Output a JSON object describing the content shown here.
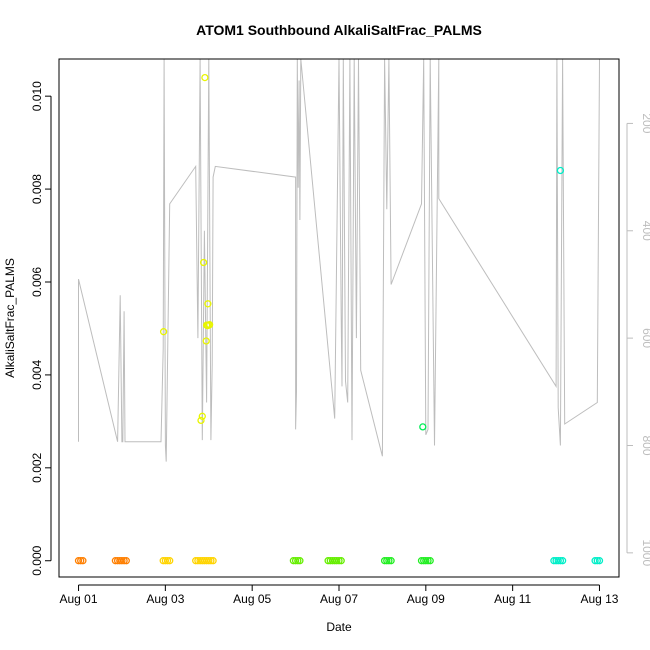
{
  "chart_data": {
    "type": "scatter",
    "title": "ATOM1 Southbound AlkaliSaltFrac_PALMS",
    "xlabel": "Date",
    "ylabel": "AlkaliSaltFrac_PALMS",
    "x_unit": "days since Aug 01",
    "xlim": [
      -0.45,
      12.45
    ],
    "ylim": [
      -0.00035,
      0.0108
    ],
    "x_ticks": [
      {
        "value": 0,
        "label": "Aug 01"
      },
      {
        "value": 2,
        "label": "Aug 03"
      },
      {
        "value": 4,
        "label": "Aug 05"
      },
      {
        "value": 6,
        "label": "Aug 07"
      },
      {
        "value": 8,
        "label": "Aug 09"
      },
      {
        "value": 10,
        "label": "Aug 11"
      },
      {
        "value": 12,
        "label": "Aug 13"
      }
    ],
    "y_ticks": [
      {
        "value": 0.0,
        "label": "0.000"
      },
      {
        "value": 0.002,
        "label": "0.002"
      },
      {
        "value": 0.004,
        "label": "0.004"
      },
      {
        "value": 0.006,
        "label": "0.006"
      },
      {
        "value": 0.008,
        "label": "0.008"
      },
      {
        "value": 0.01,
        "label": "0.010"
      }
    ],
    "right_axis": {
      "label": "",
      "ticks": [
        {
          "value": 200,
          "label": "200"
        },
        {
          "value": 400,
          "label": "400"
        },
        {
          "value": 600,
          "label": "600"
        },
        {
          "value": 800,
          "label": "800"
        },
        {
          "value": 1000,
          "label": "1000"
        }
      ],
      "ylim": [
        1045,
        80
      ],
      "color": "#bdbdbd"
    },
    "altitude_track": {
      "color": "#bdbdbd",
      "points": [
        [
          0.0,
          793
        ],
        [
          0.0,
          490
        ],
        [
          0.9,
          793
        ],
        [
          0.92,
          700
        ],
        [
          0.96,
          520
        ],
        [
          1.0,
          793
        ],
        [
          1.02,
          793
        ],
        [
          1.05,
          550
        ],
        [
          1.07,
          793
        ],
        [
          1.9,
          793
        ],
        [
          1.95,
          620
        ],
        [
          1.97,
          80
        ],
        [
          2.0,
          800
        ],
        [
          2.02,
          830
        ],
        [
          2.1,
          350
        ],
        [
          2.7,
          280
        ],
        [
          2.75,
          600
        ],
        [
          2.8,
          80
        ],
        [
          2.85,
          790
        ],
        [
          2.9,
          400
        ],
        [
          2.95,
          720
        ],
        [
          3.0,
          80
        ],
        [
          3.05,
          790
        ],
        [
          3.08,
          650
        ],
        [
          3.1,
          300
        ],
        [
          3.15,
          280
        ],
        [
          5.0,
          300
        ],
        [
          5.0,
          770
        ],
        [
          5.02,
          700
        ],
        [
          5.04,
          80
        ],
        [
          5.06,
          320
        ],
        [
          5.08,
          120
        ],
        [
          5.1,
          380
        ],
        [
          5.12,
          80
        ],
        [
          5.9,
          750
        ],
        [
          6.0,
          80
        ],
        [
          6.05,
          560
        ],
        [
          6.07,
          690
        ],
        [
          6.1,
          80
        ],
        [
          6.15,
          680
        ],
        [
          6.2,
          720
        ],
        [
          6.25,
          80
        ],
        [
          6.3,
          790
        ],
        [
          6.35,
          80
        ],
        [
          6.4,
          600
        ],
        [
          6.45,
          80
        ],
        [
          6.5,
          660
        ],
        [
          7.0,
          820
        ],
        [
          7.05,
          80
        ],
        [
          7.1,
          360
        ],
        [
          7.15,
          80
        ],
        [
          7.2,
          500
        ],
        [
          7.9,
          350
        ],
        [
          7.95,
          80
        ],
        [
          8.0,
          780
        ],
        [
          8.05,
          770
        ],
        [
          8.1,
          80
        ],
        [
          8.15,
          430
        ],
        [
          8.2,
          800
        ],
        [
          8.3,
          80
        ],
        [
          8.3,
          340
        ],
        [
          11.0,
          690
        ],
        [
          11.02,
          80
        ],
        [
          11.05,
          730
        ],
        [
          11.1,
          800
        ],
        [
          11.15,
          80
        ],
        [
          11.2,
          760
        ],
        [
          11.95,
          720
        ],
        [
          12.0,
          80
        ]
      ]
    },
    "series": [
      {
        "color": "#ff7f00",
        "x": [
          0.0,
          0.05,
          0.1,
          0.85,
          0.9,
          0.95,
          1.0,
          1.05,
          1.1
        ],
        "y": [
          0,
          0,
          0,
          0,
          0,
          0,
          0,
          0,
          0
        ]
      },
      {
        "color": "#ffd400",
        "x": [
          1.95,
          2.0,
          2.05,
          2.1,
          2.7,
          2.75,
          2.8,
          2.85,
          2.9,
          2.95,
          3.0,
          3.05,
          3.1
        ],
        "y": [
          0,
          0,
          0,
          0,
          0,
          0,
          0,
          0,
          0,
          0,
          0,
          0,
          0
        ]
      },
      {
        "color": "#e8f500",
        "x": [
          1.96,
          2.82,
          2.85,
          2.88,
          2.91,
          2.94,
          2.95,
          2.97,
          2.98,
          3.0,
          3.02
        ],
        "y": [
          0.00493,
          0.00302,
          0.00311,
          0.00642,
          0.0104,
          0.00473,
          0.00507,
          0.00506,
          0.00553,
          0.00507,
          0.00508
        ]
      },
      {
        "color": "#66ee00",
        "x": [
          4.95,
          5.0,
          5.05,
          5.1,
          5.75,
          5.8,
          5.85,
          5.9,
          5.95,
          6.0,
          6.05
        ],
        "y": [
          0,
          0,
          0,
          0,
          0,
          0,
          0,
          0,
          0,
          0,
          0
        ]
      },
      {
        "color": "#22ee22",
        "x": [
          7.05,
          7.1,
          7.15,
          7.2,
          7.9,
          7.95,
          8.0,
          8.05,
          8.1
        ],
        "y": [
          0,
          0,
          0,
          0,
          0,
          0,
          0,
          0,
          0
        ]
      },
      {
        "color": "#00ee55",
        "x": [
          7.93
        ],
        "y": [
          0.00288
        ]
      },
      {
        "color": "#00eec8",
        "x": [
          10.95,
          11.0,
          11.05,
          11.1,
          11.15,
          11.9,
          11.95,
          12.0,
          11.1
        ],
        "y": [
          0,
          0,
          0,
          0,
          0,
          0,
          0,
          0,
          0.0084
        ]
      }
    ],
    "grid": false,
    "legend": "none"
  }
}
